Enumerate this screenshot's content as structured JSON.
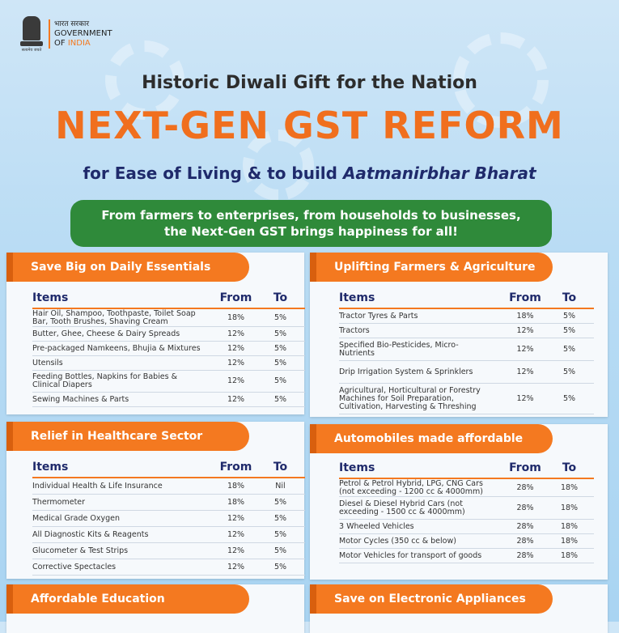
{
  "logo": {
    "hindi": "भारत सरकार",
    "line1": "GOVERNMENT",
    "line2_of": "OF ",
    "line2_india": "INDIA",
    "motto": "सत्यमेव जयते"
  },
  "header": {
    "subtitle": "Historic Diwali Gift for the Nation",
    "headline": "NEXT-GEN GST REFORM",
    "tagline_prefix": "for Ease of Living & to build ",
    "tagline_emph": "Aatmanirbhar Bharat",
    "banner_line1": "From farmers to enterprises, from households to businesses,",
    "banner_line2": "the Next-Gen GST brings happiness for all!"
  },
  "columns": {
    "items": "Items",
    "from": "From",
    "to": "To"
  },
  "sections": [
    {
      "title": "Save Big on Daily Essentials",
      "rows": [
        {
          "item": "Hair Oil, Shampoo, Toothpaste, Toilet Soap Bar, Tooth Brushes, Shaving Cream",
          "from": "18%",
          "to": "5%"
        },
        {
          "item": "Butter, Ghee, Cheese & Dairy Spreads",
          "from": "12%",
          "to": "5%"
        },
        {
          "item": "Pre-packaged Namkeens, Bhujia & Mixtures",
          "from": "12%",
          "to": "5%"
        },
        {
          "item": "Utensils",
          "from": "12%",
          "to": "5%"
        },
        {
          "item": "Feeding Bottles, Napkins for Babies & Clinical Diapers",
          "from": "12%",
          "to": "5%"
        },
        {
          "item": "Sewing Machines & Parts",
          "from": "12%",
          "to": "5%"
        }
      ]
    },
    {
      "title": "Uplifting Farmers & Agriculture",
      "rows": [
        {
          "item": "Tractor Tyres & Parts",
          "from": "18%",
          "to": "5%"
        },
        {
          "item": "Tractors",
          "from": "12%",
          "to": "5%"
        },
        {
          "item": "Specified Bio-Pesticides, Micro-Nutrients",
          "from": "12%",
          "to": "5%"
        },
        {
          "item": "Drip Irrigation System & Sprinklers",
          "from": "12%",
          "to": "5%"
        },
        {
          "item": "Agricultural, Horticultural or Forestry Machines for Soil Preparation, Cultivation, Harvesting & Threshing",
          "from": "12%",
          "to": "5%"
        }
      ]
    },
    {
      "title": "Relief in Healthcare Sector",
      "rows": [
        {
          "item": "Individual Health & Life Insurance",
          "from": "18%",
          "to": "Nil"
        },
        {
          "item": "Thermometer",
          "from": "18%",
          "to": "5%"
        },
        {
          "item": "Medical Grade Oxygen",
          "from": "12%",
          "to": "5%"
        },
        {
          "item": "All Diagnostic Kits & Reagents",
          "from": "12%",
          "to": "5%"
        },
        {
          "item": "Glucometer & Test Strips",
          "from": "12%",
          "to": "5%"
        },
        {
          "item": "Corrective Spectacles",
          "from": "12%",
          "to": "5%"
        }
      ]
    },
    {
      "title": "Automobiles made affordable",
      "rows": [
        {
          "item": "Petrol & Petrol Hybrid, LPG, CNG Cars (not exceeding - 1200 cc & 4000mm)",
          "from": "28%",
          "to": "18%"
        },
        {
          "item": "Diesel & Diesel Hybrid Cars (not exceeding - 1500 cc & 4000mm)",
          "from": "28%",
          "to": "18%"
        },
        {
          "item": "3 Wheeled Vehicles",
          "from": "28%",
          "to": "18%"
        },
        {
          "item": "Motor Cycles (350 cc & below)",
          "from": "28%",
          "to": "18%"
        },
        {
          "item": "Motor Vehicles for transport of goods",
          "from": "28%",
          "to": "18%"
        }
      ]
    },
    {
      "title": "Affordable Education",
      "rows": []
    },
    {
      "title": "Save on Electronic Appliances",
      "rows": []
    }
  ]
}
